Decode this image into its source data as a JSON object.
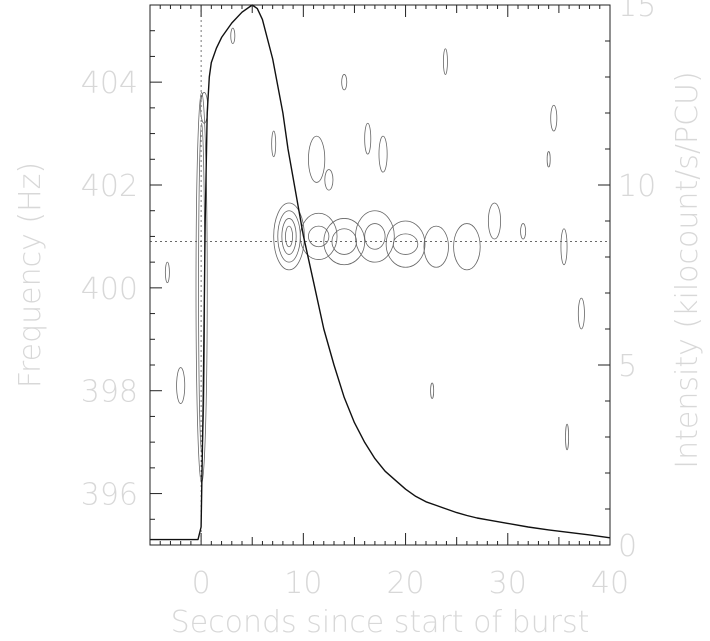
{
  "chart_data": {
    "type": "line",
    "title": "",
    "xlabel": "Seconds since start of burst",
    "ylabel_left": "Frequency (Hz)",
    "ylabel_right": "Intensity (kilocount/s/PCU)",
    "xlim": [
      -5,
      40
    ],
    "ylim_left": [
      395,
      405.5
    ],
    "ylim_right": [
      0,
      15
    ],
    "x_ticks": [
      0,
      10,
      20,
      30,
      40
    ],
    "y_ticks_left": [
      396,
      398,
      400,
      402,
      404
    ],
    "y_ticks_right": [
      0,
      5,
      10,
      15
    ],
    "grid": false,
    "reference_lines": {
      "x": 0,
      "y_left": 400.9
    },
    "series": [
      {
        "axis": "right",
        "x": [
          -5,
          -0.3,
          0,
          0.2,
          0.4,
          0.6,
          0.8,
          1.0,
          1.5,
          2,
          3,
          4,
          5,
          5.5,
          6,
          7,
          8,
          8.5,
          9,
          10,
          11,
          12,
          13,
          14,
          15,
          16,
          17,
          18,
          19,
          20,
          21,
          22,
          23,
          24,
          25,
          26,
          27,
          28,
          30,
          32,
          34,
          36,
          38,
          40
        ],
        "y": [
          0.15,
          0.15,
          0.5,
          4.0,
          9.0,
          12.0,
          13.0,
          13.4,
          13.8,
          14.1,
          14.5,
          14.8,
          15.0,
          14.9,
          14.6,
          13.5,
          12.0,
          11.0,
          10.2,
          8.6,
          7.3,
          6.0,
          5.0,
          4.1,
          3.4,
          2.85,
          2.4,
          2.05,
          1.8,
          1.55,
          1.35,
          1.2,
          1.1,
          1.0,
          0.9,
          0.82,
          0.75,
          0.7,
          0.6,
          0.5,
          0.42,
          0.35,
          0.28,
          0.2
        ]
      }
    ],
    "contours": [
      {
        "x": 8.6,
        "y": 401.0,
        "rx": [
          0.35,
          0.7,
          1.1,
          1.5
        ],
        "ry": [
          0.2,
          0.35,
          0.5,
          0.65
        ]
      },
      {
        "x": 11.5,
        "y": 401.0,
        "rx": [
          1.0,
          1.8
        ],
        "ry": [
          0.2,
          0.45
        ]
      },
      {
        "x": 14.0,
        "y": 400.9,
        "rx": [
          1.2,
          2.0
        ],
        "ry": [
          0.25,
          0.45
        ]
      },
      {
        "x": 17.0,
        "y": 401.0,
        "rx": [
          1.0,
          1.9
        ],
        "ry": [
          0.25,
          0.5
        ]
      },
      {
        "x": 20.0,
        "y": 400.85,
        "rx": [
          1.2,
          1.9
        ],
        "ry": [
          0.2,
          0.45
        ]
      },
      {
        "x": 23.0,
        "y": 400.8,
        "rx": [
          1.2
        ],
        "ry": [
          0.4
        ]
      },
      {
        "x": 26.0,
        "y": 400.8,
        "rx": [
          1.3
        ],
        "ry": [
          0.45
        ]
      },
      {
        "x": 28.7,
        "y": 401.3,
        "rx": [
          0.6
        ],
        "ry": [
          0.35
        ]
      },
      {
        "x": 31.5,
        "y": 401.1,
        "rx": [
          0.25
        ],
        "ry": [
          0.15
        ]
      },
      {
        "x": 35.5,
        "y": 400.8,
        "rx": [
          0.3
        ],
        "ry": [
          0.35
        ]
      },
      {
        "x": 0.05,
        "y": 400.0,
        "rx": [
          0.3,
          0.55
        ],
        "ry": [
          3.2,
          3.8
        ]
      },
      {
        "x": 0.3,
        "y": 403.5,
        "rx": [
          0.35
        ],
        "ry": [
          0.3
        ]
      },
      {
        "x": -2.0,
        "y": 398.1,
        "rx": [
          0.4
        ],
        "ry": [
          0.35
        ]
      },
      {
        "x": -3.3,
        "y": 400.3,
        "rx": [
          0.2
        ],
        "ry": [
          0.2
        ]
      },
      {
        "x": 14.0,
        "y": 404.0,
        "rx": [
          0.25
        ],
        "ry": [
          0.15
        ]
      },
      {
        "x": 16.3,
        "y": 402.9,
        "rx": [
          0.3
        ],
        "ry": [
          0.3
        ]
      },
      {
        "x": 17.8,
        "y": 402.6,
        "rx": [
          0.4
        ],
        "ry": [
          0.35
        ]
      },
      {
        "x": 11.3,
        "y": 402.5,
        "rx": [
          0.8
        ],
        "ry": [
          0.45
        ]
      },
      {
        "x": 12.5,
        "y": 402.1,
        "rx": [
          0.4
        ],
        "ry": [
          0.2
        ]
      },
      {
        "x": 7.1,
        "y": 402.8,
        "rx": [
          0.2
        ],
        "ry": [
          0.25
        ]
      },
      {
        "x": 3.1,
        "y": 404.9,
        "rx": [
          0.2
        ],
        "ry": [
          0.15
        ]
      },
      {
        "x": 23.9,
        "y": 404.4,
        "rx": [
          0.2
        ],
        "ry": [
          0.25
        ]
      },
      {
        "x": 34.5,
        "y": 403.3,
        "rx": [
          0.3
        ],
        "ry": [
          0.25
        ]
      },
      {
        "x": 34.0,
        "y": 402.5,
        "rx": [
          0.15
        ],
        "ry": [
          0.15
        ]
      },
      {
        "x": 37.2,
        "y": 399.5,
        "rx": [
          0.3
        ],
        "ry": [
          0.3
        ]
      },
      {
        "x": 22.6,
        "y": 398.0,
        "rx": [
          0.15
        ],
        "ry": [
          0.15
        ]
      },
      {
        "x": 35.8,
        "y": 397.1,
        "rx": [
          0.15
        ],
        "ry": [
          0.25
        ]
      }
    ]
  }
}
